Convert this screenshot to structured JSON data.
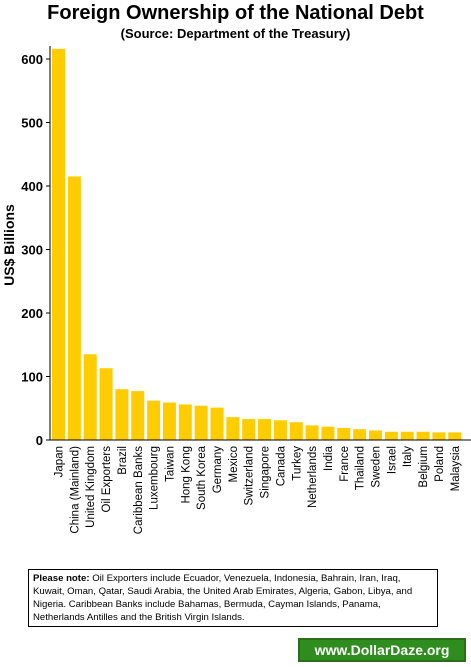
{
  "chart_data": {
    "type": "bar",
    "title": "Foreign Ownership of the National Debt",
    "subtitle": "(Source: Department of the Treasury)",
    "ylabel": "US$ Billions",
    "xlabel": "",
    "ylim": [
      0,
      620
    ],
    "yticks": [
      0,
      100,
      200,
      300,
      400,
      500,
      600
    ],
    "grid": false,
    "bar_color": "#ffcc00",
    "categories": [
      "Japan",
      "China (Mainland)",
      "United Kingdom",
      "Oil Exporters",
      "Brazil",
      "Caribbean Banks",
      "Luxembourg",
      "Taiwan",
      "Hong Kong",
      "South Korea",
      "Germany",
      "Mexico",
      "Switzerland",
      "Singapore",
      "Canada",
      "Turkey",
      "Netherlands",
      "India",
      "France",
      "Thailand",
      "Sweden",
      "Israel",
      "Italy",
      "Belgium",
      "Poland",
      "Malaysia"
    ],
    "values": [
      616,
      415,
      135,
      113,
      80,
      77,
      62,
      59,
      56,
      54,
      51,
      36,
      33,
      33,
      31,
      28,
      23,
      21,
      19,
      17,
      15,
      13,
      13,
      13,
      12,
      12
    ]
  },
  "note": {
    "label": "Please note:",
    "text": " Oil Exporters include Ecuador, Venezuela, Indonesia, Bahrain, Iran, Iraq, Kuwait, Oman, Qatar, Saudi Arabia, the United Arab Emirates, Algeria, Gabon, Libya, and Nigeria. Caribbean Banks include Bahamas, Bermuda, Cayman Islands, Panama, Netherlands Antilles and the British Virgin Islands."
  },
  "brand": {
    "text": "www.DollarDaze.org",
    "color": "#2f8c1f"
  }
}
